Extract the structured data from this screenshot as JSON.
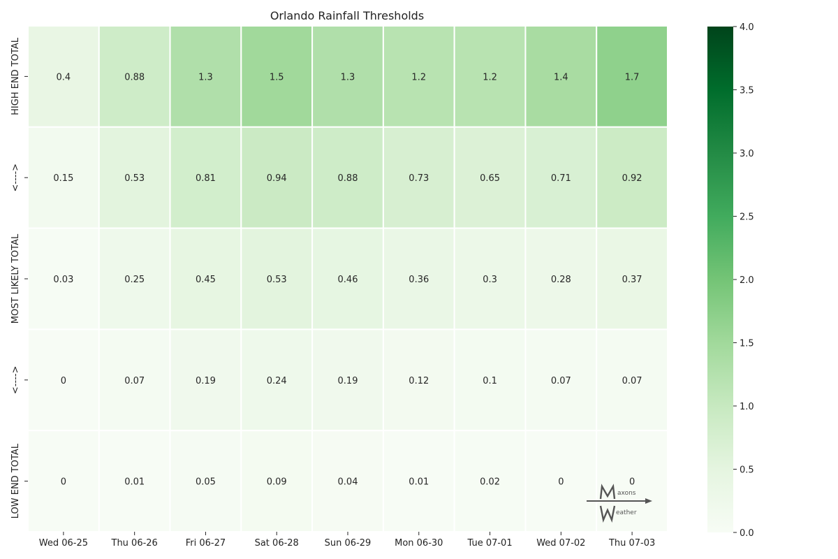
{
  "chart_data": {
    "type": "heatmap",
    "title": "Orlando Rainfall Thresholds",
    "x_categories": [
      "Wed 06-25",
      "Thu 06-26",
      "Fri 06-27",
      "Sat 06-28",
      "Sun 06-29",
      "Mon 06-30",
      "Tue 07-01",
      "Wed 07-02",
      "Thu 07-03"
    ],
    "y_categories": [
      "HIGH END TOTAL",
      "<---->",
      "MOST LIKELY TOTAL",
      "<---->",
      "LOW END TOTAL"
    ],
    "values": [
      [
        0.4,
        0.88,
        1.3,
        1.5,
        1.3,
        1.2,
        1.2,
        1.4,
        1.7
      ],
      [
        0.15,
        0.53,
        0.81,
        0.94,
        0.88,
        0.73,
        0.65,
        0.71,
        0.92
      ],
      [
        0.03,
        0.25,
        0.45,
        0.53,
        0.46,
        0.36,
        0.3,
        0.28,
        0.37
      ],
      [
        0,
        0.07,
        0.19,
        0.24,
        0.19,
        0.12,
        0.1,
        0.07,
        0.07
      ],
      [
        0,
        0.01,
        0.05,
        0.09,
        0.04,
        0.01,
        0.02,
        0,
        0
      ]
    ],
    "colorbar": {
      "min": 0,
      "max": 4,
      "ticks": [
        "0.0",
        "0.5",
        "1.0",
        "1.5",
        "2.0",
        "2.5",
        "3.0",
        "3.5",
        "4.0"
      ],
      "colormap": "Greens",
      "colors": [
        "#f7fcf5",
        "#e5f5e0",
        "#c7e9c0",
        "#a1d99b",
        "#74c476",
        "#41ab5d",
        "#238b45",
        "#006d2c",
        "#00441b"
      ]
    },
    "annotations": true,
    "grid_line_color": "#ffffff"
  },
  "watermark": {
    "text": "Maxons Weather",
    "color": "#555555"
  }
}
